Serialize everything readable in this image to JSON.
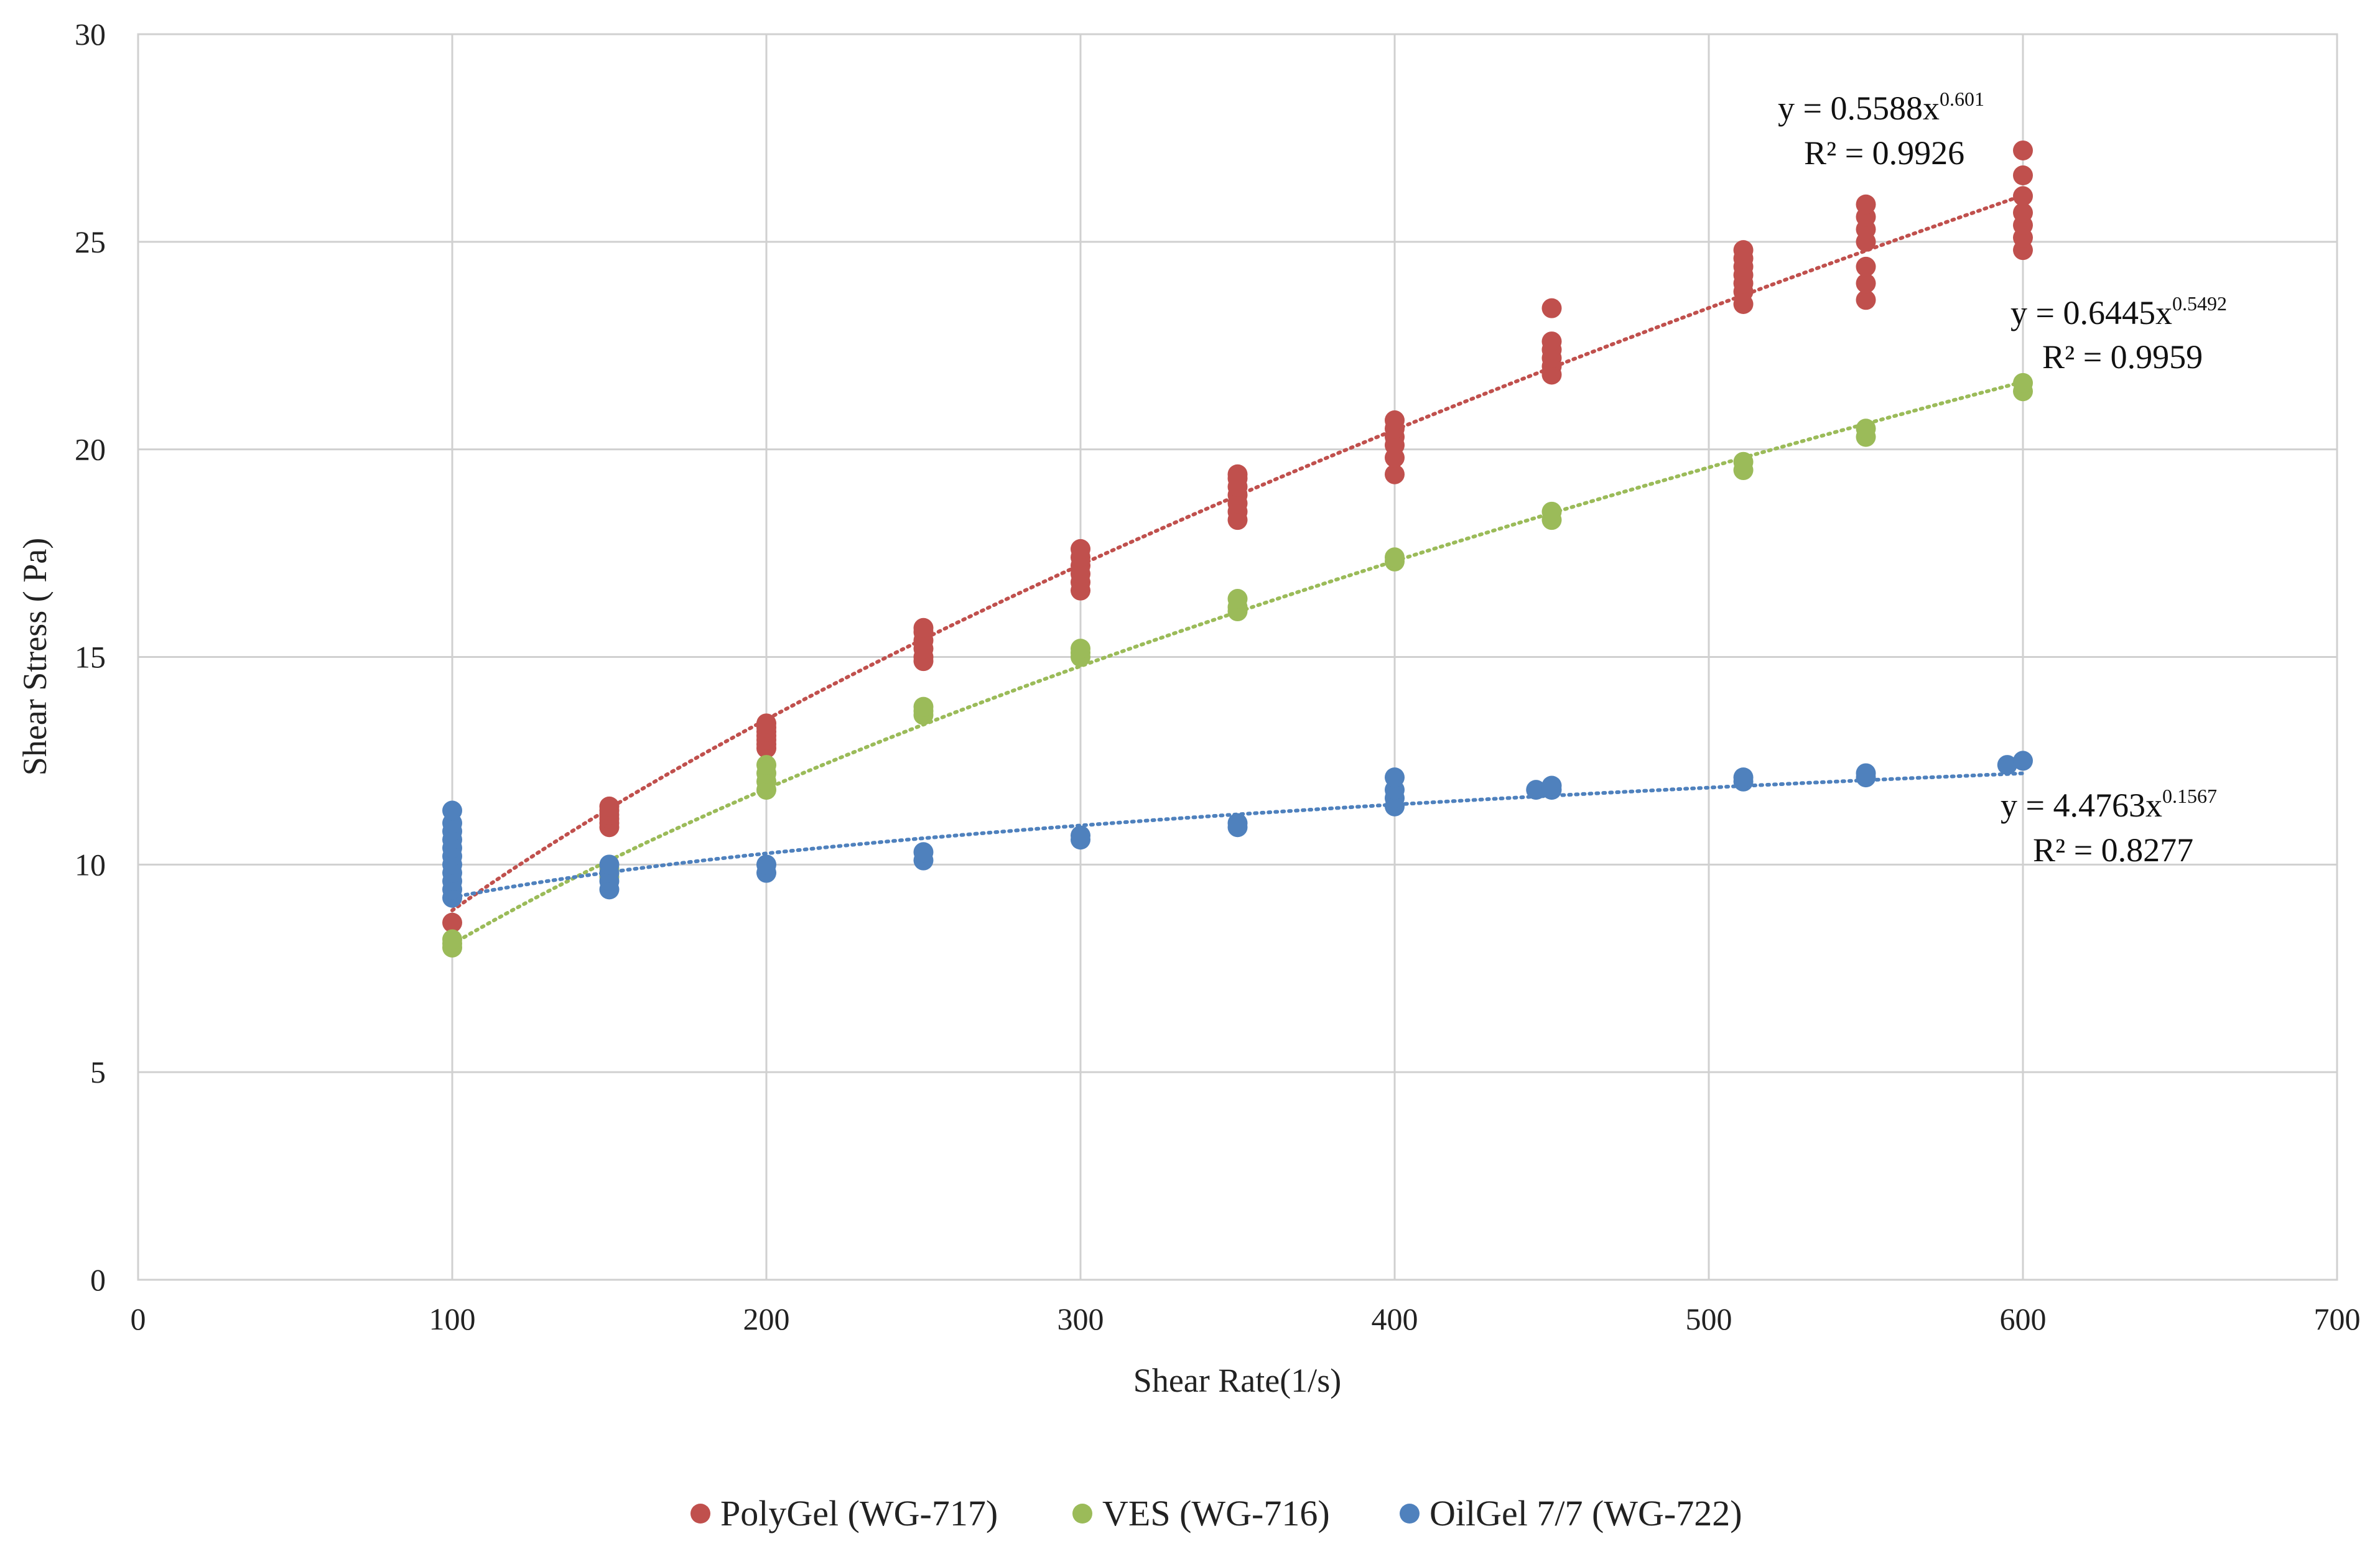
{
  "chart_data": {
    "type": "scatter",
    "title": "",
    "xlabel": "Shear Rate(1/s)",
    "ylabel": "Shear Stress ( Pa)",
    "xlim": [
      0,
      700
    ],
    "ylim": [
      0,
      30
    ],
    "xticks": [
      0,
      100,
      200,
      300,
      400,
      500,
      600,
      700
    ],
    "yticks": [
      0,
      5,
      10,
      15,
      20,
      25,
      30
    ],
    "grid": true,
    "legend_position": "bottom",
    "series": [
      {
        "name": "PolyGel (WG-717)",
        "color": "#c0504d",
        "trendline": {
          "type": "power",
          "a": 0.5588,
          "b": 0.601,
          "x_range": [
            100,
            600
          ]
        },
        "equation": {
          "prefix": "y = 0.5588x",
          "exponent": "0.601",
          "r2": "R² = 0.9926"
        },
        "points": [
          [
            100,
            8.6
          ],
          [
            150,
            10.9
          ],
          [
            150,
            11.0
          ],
          [
            150,
            11.1
          ],
          [
            150,
            11.2
          ],
          [
            150,
            11.3
          ],
          [
            150,
            11.4
          ],
          [
            200,
            12.8
          ],
          [
            200,
            12.9
          ],
          [
            200,
            13.0
          ],
          [
            200,
            13.1
          ],
          [
            200,
            13.2
          ],
          [
            200,
            13.3
          ],
          [
            200,
            13.4
          ],
          [
            250,
            14.9
          ],
          [
            250,
            15.0
          ],
          [
            250,
            15.2
          ],
          [
            250,
            15.4
          ],
          [
            250,
            15.6
          ],
          [
            250,
            15.7
          ],
          [
            300,
            16.6
          ],
          [
            300,
            16.8
          ],
          [
            300,
            17.0
          ],
          [
            300,
            17.2
          ],
          [
            300,
            17.4
          ],
          [
            300,
            17.6
          ],
          [
            350,
            18.3
          ],
          [
            350,
            18.5
          ],
          [
            350,
            18.7
          ],
          [
            350,
            18.9
          ],
          [
            350,
            19.1
          ],
          [
            350,
            19.3
          ],
          [
            350,
            19.4
          ],
          [
            400,
            19.4
          ],
          [
            400,
            19.8
          ],
          [
            400,
            20.1
          ],
          [
            400,
            20.3
          ],
          [
            400,
            20.5
          ],
          [
            400,
            20.7
          ],
          [
            450,
            21.8
          ],
          [
            450,
            22.0
          ],
          [
            450,
            22.2
          ],
          [
            450,
            22.4
          ],
          [
            450,
            22.6
          ],
          [
            450,
            23.4
          ],
          [
            511,
            23.5
          ],
          [
            511,
            23.8
          ],
          [
            511,
            24.0
          ],
          [
            511,
            24.2
          ],
          [
            511,
            24.4
          ],
          [
            511,
            24.6
          ],
          [
            511,
            24.8
          ],
          [
            550,
            23.6
          ],
          [
            550,
            24.0
          ],
          [
            550,
            24.4
          ],
          [
            550,
            25.0
          ],
          [
            550,
            25.3
          ],
          [
            550,
            25.6
          ],
          [
            550,
            25.9
          ],
          [
            600,
            24.8
          ],
          [
            600,
            25.1
          ],
          [
            600,
            25.4
          ],
          [
            600,
            25.7
          ],
          [
            600,
            26.1
          ],
          [
            600,
            26.6
          ],
          [
            600,
            27.2
          ]
        ]
      },
      {
        "name": "VES (WG-716)",
        "color": "#9bbb59",
        "trendline": {
          "type": "power",
          "a": 0.6445,
          "b": 0.5492,
          "x_range": [
            100,
            600
          ]
        },
        "equation": {
          "prefix": "y = 0.6445x",
          "exponent": "0.5492",
          "r2": "R² = 0.9959"
        },
        "points": [
          [
            100,
            8.0
          ],
          [
            100,
            8.1
          ],
          [
            100,
            8.2
          ],
          [
            150,
            9.7
          ],
          [
            150,
            9.8
          ],
          [
            150,
            9.9
          ],
          [
            200,
            11.8
          ],
          [
            200,
            12.0
          ],
          [
            200,
            12.2
          ],
          [
            200,
            12.4
          ],
          [
            250,
            13.6
          ],
          [
            250,
            13.7
          ],
          [
            250,
            13.8
          ],
          [
            300,
            15.0
          ],
          [
            300,
            15.1
          ],
          [
            300,
            15.2
          ],
          [
            350,
            16.1
          ],
          [
            350,
            16.2
          ],
          [
            350,
            16.4
          ],
          [
            400,
            17.3
          ],
          [
            400,
            17.4
          ],
          [
            450,
            18.3
          ],
          [
            450,
            18.5
          ],
          [
            511,
            19.5
          ],
          [
            511,
            19.7
          ],
          [
            550,
            20.3
          ],
          [
            550,
            20.5
          ],
          [
            600,
            21.4
          ],
          [
            600,
            21.6
          ]
        ]
      },
      {
        "name": "OilGel 7/7 (WG-722)",
        "color": "#4f81bd",
        "trendline": {
          "type": "power",
          "a": 4.4763,
          "b": 0.1567,
          "x_range": [
            100,
            600
          ]
        },
        "equation": {
          "prefix": "y = 4.4763x",
          "exponent": "0.1567",
          "r2": "R² = 0.8277"
        },
        "points": [
          [
            100,
            9.2
          ],
          [
            100,
            9.4
          ],
          [
            100,
            9.6
          ],
          [
            100,
            9.8
          ],
          [
            100,
            10.0
          ],
          [
            100,
            10.2
          ],
          [
            100,
            10.4
          ],
          [
            100,
            10.6
          ],
          [
            100,
            10.8
          ],
          [
            100,
            11.0
          ],
          [
            100,
            11.3
          ],
          [
            150,
            9.4
          ],
          [
            150,
            9.6
          ],
          [
            150,
            9.8
          ],
          [
            150,
            10.0
          ],
          [
            200,
            9.8
          ],
          [
            200,
            10.0
          ],
          [
            250,
            10.1
          ],
          [
            250,
            10.3
          ],
          [
            300,
            10.6
          ],
          [
            300,
            10.7
          ],
          [
            350,
            10.9
          ],
          [
            350,
            11.0
          ],
          [
            400,
            11.4
          ],
          [
            400,
            11.6
          ],
          [
            400,
            11.8
          ],
          [
            400,
            12.1
          ],
          [
            445,
            11.8
          ],
          [
            450,
            11.8
          ],
          [
            450,
            11.9
          ],
          [
            511,
            12.0
          ],
          [
            511,
            12.1
          ],
          [
            550,
            12.1
          ],
          [
            550,
            12.2
          ],
          [
            595,
            12.4
          ],
          [
            600,
            12.5
          ]
        ]
      }
    ]
  }
}
